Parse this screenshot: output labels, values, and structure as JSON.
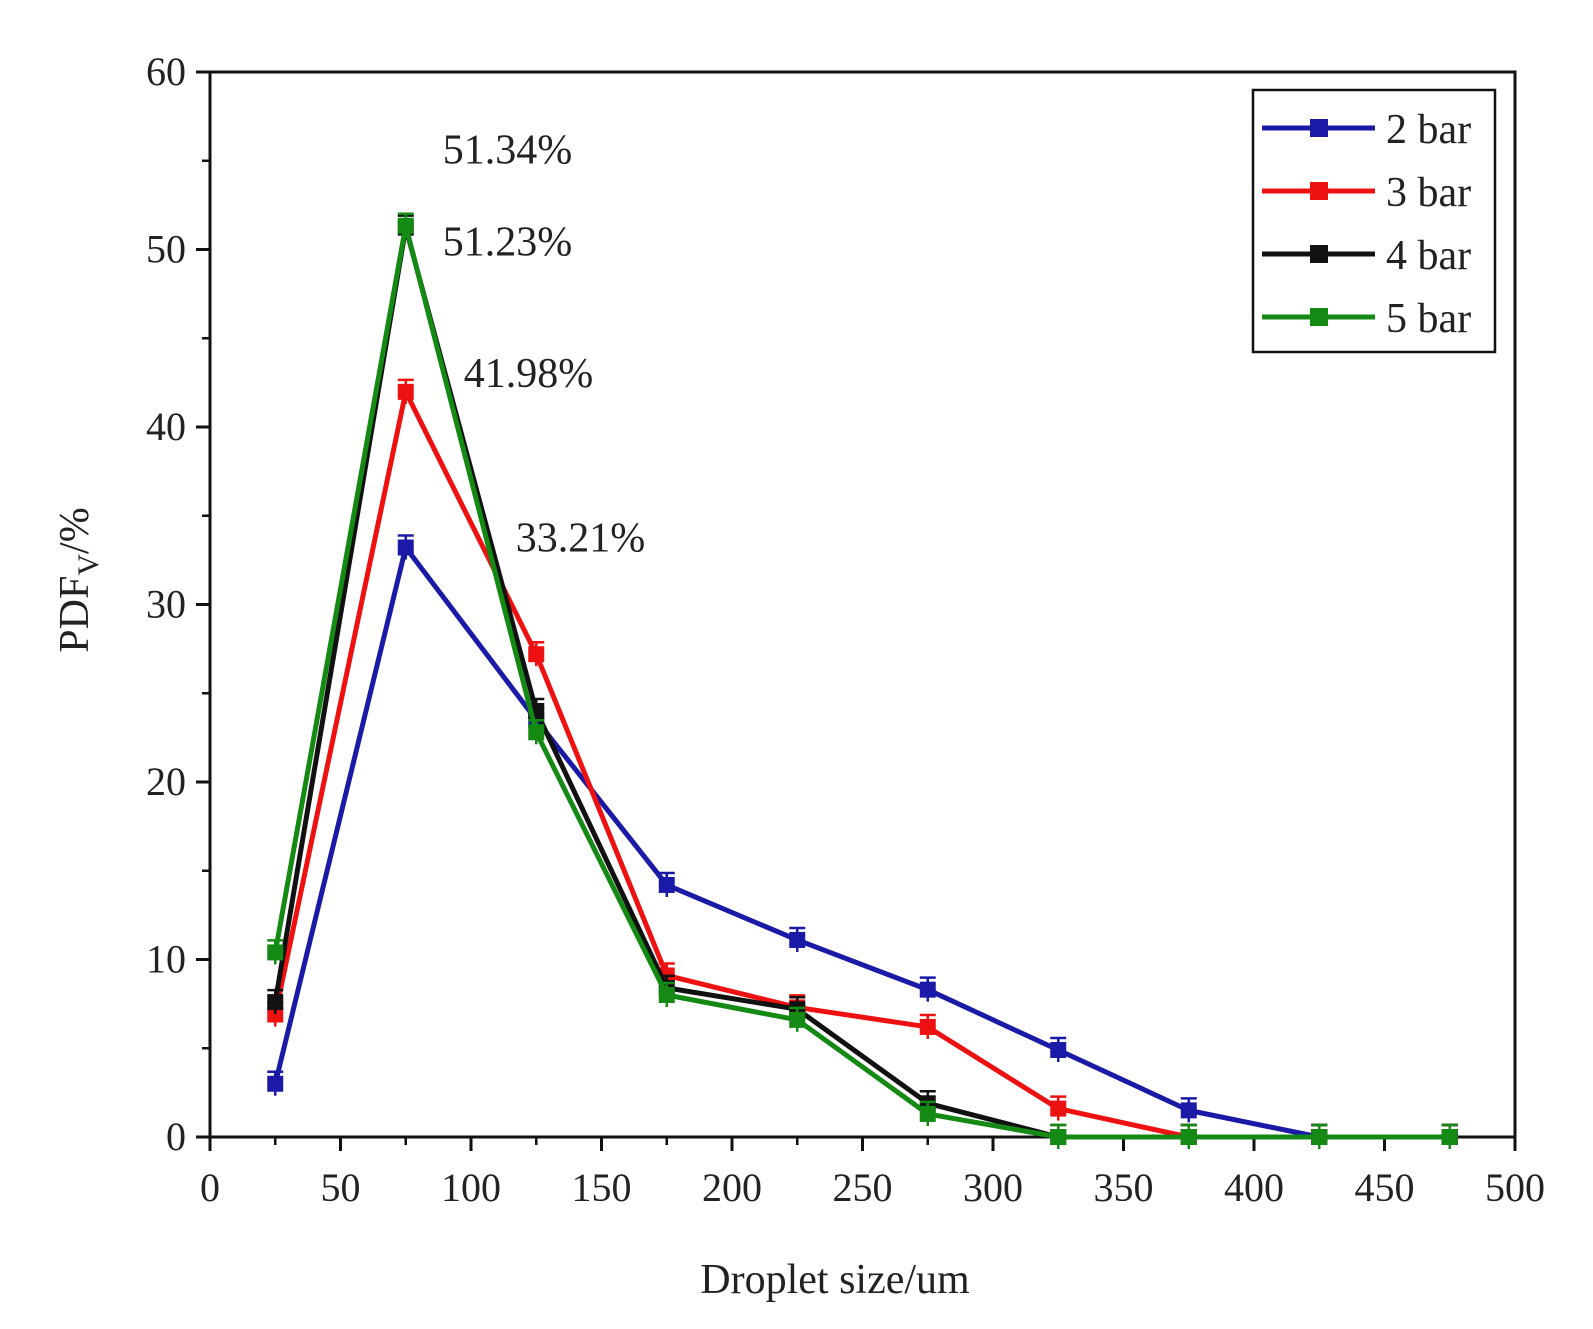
{
  "chart_data": {
    "type": "line",
    "title": "",
    "xlabel": "Droplet size/um",
    "ylabel_main": "PDF",
    "ylabel_sub": "V",
    "ylabel_suffix": "/%",
    "xlim": [
      0,
      500
    ],
    "ylim": [
      0,
      60
    ],
    "xticks": [
      0,
      50,
      100,
      150,
      200,
      250,
      300,
      350,
      400,
      450,
      500
    ],
    "yticks": [
      0,
      10,
      20,
      30,
      40,
      50,
      60
    ],
    "x": [
      25,
      75,
      125,
      175,
      225,
      275,
      325,
      375,
      425,
      475
    ],
    "series": [
      {
        "name": "2 bar",
        "color": "#1a1aa6",
        "values": [
          3.0,
          33.21,
          23.5,
          14.2,
          11.1,
          8.3,
          4.9,
          1.5,
          0.0,
          0.0
        ]
      },
      {
        "name": "3 bar",
        "color": "#ee1111",
        "values": [
          6.9,
          41.98,
          27.2,
          9.1,
          7.3,
          6.2,
          1.6,
          0.0,
          0.0,
          0.0
        ]
      },
      {
        "name": "4 bar",
        "color": "#111111",
        "values": [
          7.6,
          51.23,
          24.0,
          8.4,
          7.2,
          1.9,
          0.0,
          0.0,
          0.0,
          0.0
        ]
      },
      {
        "name": "5 bar",
        "color": "#148a14",
        "values": [
          10.4,
          51.34,
          22.8,
          8.0,
          6.6,
          1.3,
          0.0,
          0.0,
          0.0,
          0.0
        ]
      }
    ],
    "annotations": [
      {
        "text": "51.34%",
        "x": 75,
        "y": 51.34
      },
      {
        "text": "51.23%",
        "x": 75,
        "y": 51.23
      },
      {
        "text": "41.98%",
        "x": 75,
        "y": 41.98
      },
      {
        "text": "33.21%",
        "x": 75,
        "y": 33.21
      }
    ],
    "legend_position": "top-right"
  }
}
